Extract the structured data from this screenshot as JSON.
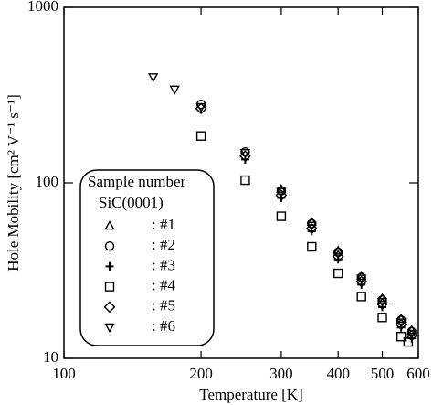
{
  "chart_data": {
    "type": "scatter",
    "x_label": "Temperature  [K]",
    "y_label": "Hole Mobility  [cm² V⁻¹ s⁻¹]",
    "xlim": [
      100,
      600
    ],
    "ylim": [
      10,
      1000
    ],
    "xticks": [
      100,
      200,
      300,
      400,
      500,
      600
    ],
    "yticks": [
      10,
      100,
      1000
    ],
    "x_scale": "log",
    "y_scale": "log",
    "legend_title": [
      "Sample number",
      "SiC(0001)"
    ],
    "legend_position": "lower left",
    "series": [
      {
        "name": ": #1",
        "marker": "triangle-up",
        "color": "#000000",
        "x": [
          300,
          350,
          400,
          450,
          500,
          550,
          580
        ],
        "values": [
          92,
          60,
          41,
          29.5,
          22,
          16.8,
          14.5
        ]
      },
      {
        "name": ": #2",
        "marker": "circle",
        "color": "#000000",
        "x": [
          200,
          250,
          300,
          350,
          400,
          450,
          500,
          550,
          580
        ],
        "values": [
          280,
          150,
          90,
          58.5,
          40.2,
          28.9,
          21.5,
          16.5,
          14.2
        ]
      },
      {
        "name": ": #3",
        "marker": "plus",
        "color": "#000000",
        "x": [
          250,
          300,
          350,
          400,
          450,
          500,
          550,
          580
        ],
        "values": [
          136,
          82,
          53,
          36.6,
          26.3,
          19.6,
          15,
          13
        ]
      },
      {
        "name": ": #4",
        "marker": "square",
        "color": "#000000",
        "x": [
          200,
          250,
          300,
          350,
          400,
          450,
          500,
          550,
          570
        ],
        "values": [
          185,
          103.6,
          64.5,
          43.2,
          30.5,
          22.5,
          17.1,
          13.3,
          12.4
        ]
      },
      {
        "name": ": #5",
        "marker": "diamond",
        "color": "#000000",
        "x": [
          200,
          250,
          300,
          350,
          400,
          450,
          500,
          550,
          580
        ],
        "values": [
          265,
          142,
          85,
          55,
          38,
          27.4,
          20.4,
          15.6,
          13.5
        ]
      },
      {
        "name": ": #6",
        "marker": "triangle-down",
        "color": "#000000",
        "x": [
          157,
          175,
          200,
          250,
          300,
          350,
          400,
          450,
          500,
          550,
          580
        ],
        "values": [
          400,
          340,
          270,
          148,
          89,
          57,
          39.5,
          28.5,
          21,
          16,
          13.8
        ]
      }
    ]
  }
}
